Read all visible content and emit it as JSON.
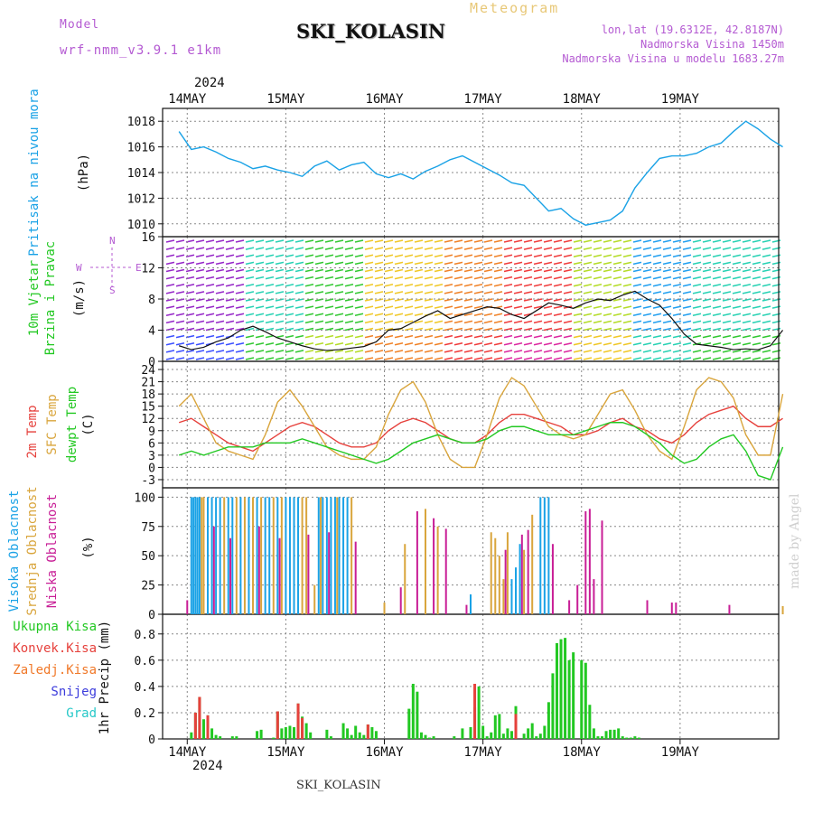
{
  "header": {
    "model_label": "Model",
    "model_name": "wrf-nmm_v3.9.1  e1km",
    "station": "SKI_KOLASIN",
    "product": "Meteogram",
    "lonlat": "lon,lat (19.6312E, 42.8187N)",
    "elevation": "Nadmorska Visina 1450m",
    "model_elevation": "Nadmorska Visina u modelu 1683.27m",
    "year": "2024",
    "footer_station": "SKI_KOLASIN",
    "watermark": "made by Angel"
  },
  "colors": {
    "pressure": "#1aa2e6",
    "temp2m": "#e6413c",
    "sfc": "#d9a53c",
    "dew": "#22c822",
    "cloud_high": "#1aa2e6",
    "cloud_mid": "#d9a53c",
    "cloud_low": "#c81e96",
    "rain_total": "#22c822",
    "rain_conv": "#e6413c",
    "rain_frozen": "#f07828",
    "snow": "#3c3cdc",
    "graupel": "#28c8c8",
    "label_purple": "#b45ad2"
  },
  "chart_data": [
    {
      "type": "line",
      "title": "",
      "ylabel_lines": [
        "Pritisak na nivou mora",
        "(hPa)"
      ],
      "x_ticks": [
        "14MAY",
        "15MAY",
        "16MAY",
        "17MAY",
        "18MAY",
        "19MAY"
      ],
      "ylim": [
        1009,
        1019
      ],
      "y_ticks": [
        1010,
        1012,
        1014,
        1016,
        1018
      ],
      "grid": true,
      "series": [
        {
          "name": "Pritisak na nivou mora",
          "x_hours": [
            0,
            3,
            6,
            9,
            12,
            15,
            18,
            21,
            24,
            27,
            30,
            33,
            36,
            39,
            42,
            45,
            48,
            51,
            54,
            57,
            60,
            63,
            66,
            69,
            72,
            75,
            78,
            81,
            84,
            87,
            90,
            93,
            96,
            99,
            102,
            105,
            108,
            111,
            114,
            117,
            120,
            123,
            126,
            129,
            132,
            135,
            138,
            141,
            144,
            147
          ],
          "values": [
            1017.2,
            1015.8,
            1016.0,
            1015.6,
            1015.1,
            1014.8,
            1014.3,
            1014.5,
            1014.2,
            1014.0,
            1013.7,
            1014.5,
            1014.9,
            1014.2,
            1014.6,
            1014.8,
            1013.9,
            1013.6,
            1013.9,
            1013.5,
            1014.1,
            1014.5,
            1015.0,
            1015.3,
            1014.8,
            1014.3,
            1013.8,
            1013.2,
            1013.0,
            1012.0,
            1011.0,
            1011.2,
            1010.4,
            1009.9,
            1010.1,
            1010.3,
            1011.0,
            1012.8,
            1014.0,
            1015.1,
            1015.3,
            1015.3,
            1015.5,
            1016.0,
            1016.3,
            1017.2,
            1018.0,
            1017.4,
            1016.6,
            1016.0
          ]
        }
      ]
    },
    {
      "type": "line",
      "title": "",
      "ylabel_lines": [
        "10m Vjetar",
        "Brzina i Pravac",
        "(m/s)"
      ],
      "ylim": [
        0,
        16
      ],
      "y_ticks": [
        0,
        4,
        8,
        12,
        16
      ],
      "grid": true,
      "wind_rose": [
        "N",
        "E",
        "S",
        "W"
      ],
      "series": [
        {
          "name": "Brzina",
          "x_hours": [
            0,
            3,
            6,
            9,
            12,
            15,
            18,
            21,
            24,
            27,
            30,
            33,
            36,
            39,
            42,
            45,
            48,
            51,
            54,
            57,
            60,
            63,
            66,
            69,
            72,
            75,
            78,
            81,
            84,
            87,
            90,
            93,
            96,
            99,
            102,
            105,
            108,
            111,
            114,
            117,
            120,
            123,
            126,
            129,
            132,
            135,
            138,
            141,
            144,
            147
          ],
          "values": [
            2.0,
            1.5,
            1.8,
            2.5,
            3.0,
            4.0,
            4.5,
            3.8,
            3.0,
            2.5,
            2.0,
            1.6,
            1.4,
            1.5,
            1.7,
            1.9,
            2.5,
            4.0,
            4.2,
            5.0,
            5.8,
            6.5,
            5.5,
            6.0,
            6.5,
            7.0,
            6.8,
            6.0,
            5.5,
            6.5,
            7.5,
            7.2,
            6.8,
            7.5,
            8.0,
            7.8,
            8.5,
            9.0,
            8.0,
            7.2,
            5.5,
            3.5,
            2.2,
            2.0,
            1.8,
            1.5,
            1.6,
            1.5,
            2.0,
            4.0
          ]
        }
      ]
    },
    {
      "type": "line",
      "title": "",
      "ylabel_lines": [
        "2m Temp",
        "SFC Temp",
        "dewpt Temp",
        "(C)"
      ],
      "ylim": [
        -5,
        26
      ],
      "y_ticks": [
        -3,
        0,
        3,
        6,
        9,
        12,
        15,
        18,
        21,
        24
      ],
      "grid": true,
      "series": [
        {
          "name": "2m Temp",
          "x_hours": [
            0,
            3,
            6,
            9,
            12,
            15,
            18,
            21,
            24,
            27,
            30,
            33,
            36,
            39,
            42,
            45,
            48,
            51,
            54,
            57,
            60,
            63,
            66,
            69,
            72,
            75,
            78,
            81,
            84,
            87,
            90,
            93,
            96,
            99,
            102,
            105,
            108,
            111,
            114,
            117,
            120,
            123,
            126,
            129,
            132,
            135,
            138,
            141,
            144,
            147
          ],
          "values": [
            11,
            12,
            10,
            8,
            6,
            5,
            4,
            6,
            8,
            10,
            11,
            10,
            8,
            6,
            5,
            5,
            6,
            9,
            11,
            12,
            11,
            9,
            7,
            6,
            6,
            8,
            11,
            13,
            13,
            12,
            11,
            10,
            8,
            8,
            9,
            11,
            12,
            10,
            9,
            7,
            6,
            8,
            11,
            13,
            14,
            15,
            12,
            10,
            10,
            12
          ]
        },
        {
          "name": "SFC Temp",
          "x_hours": [
            0,
            3,
            6,
            9,
            12,
            15,
            18,
            21,
            24,
            27,
            30,
            33,
            36,
            39,
            42,
            45,
            48,
            51,
            54,
            57,
            60,
            63,
            66,
            69,
            72,
            75,
            78,
            81,
            84,
            87,
            90,
            93,
            96,
            99,
            102,
            105,
            108,
            111,
            114,
            117,
            120,
            123,
            126,
            129,
            132,
            135,
            138,
            141,
            144,
            147
          ],
          "values": [
            15,
            18,
            12,
            6,
            4,
            3,
            2,
            8,
            16,
            19,
            15,
            10,
            5,
            3,
            2,
            2,
            5,
            13,
            19,
            21,
            16,
            8,
            2,
            0,
            0,
            8,
            17,
            22,
            20,
            15,
            10,
            8,
            7,
            8,
            13,
            18,
            19,
            14,
            8,
            4,
            2,
            10,
            19,
            22,
            21,
            17,
            8,
            3,
            3,
            18
          ]
        },
        {
          "name": "dewpt Temp",
          "x_hours": [
            0,
            3,
            6,
            9,
            12,
            15,
            18,
            21,
            24,
            27,
            30,
            33,
            36,
            39,
            42,
            45,
            48,
            51,
            54,
            57,
            60,
            63,
            66,
            69,
            72,
            75,
            78,
            81,
            84,
            87,
            90,
            93,
            96,
            99,
            102,
            105,
            108,
            111,
            114,
            117,
            120,
            123,
            126,
            129,
            132,
            135,
            138,
            141,
            144,
            147
          ],
          "values": [
            3,
            4,
            3,
            4,
            5,
            5,
            5,
            6,
            6,
            6,
            7,
            6,
            5,
            4,
            3,
            2,
            1,
            2,
            4,
            6,
            7,
            8,
            7,
            6,
            6,
            7,
            9,
            10,
            10,
            9,
            8,
            8,
            8,
            9,
            10,
            11,
            11,
            10,
            8,
            6,
            3,
            1,
            2,
            5,
            7,
            8,
            4,
            -2,
            -3,
            5
          ]
        }
      ]
    },
    {
      "type": "bar",
      "title": "",
      "ylabel_lines": [
        "Visoka Oblacnost",
        "Srednja Oblacnost",
        "Niska Oblacnost",
        "(%)"
      ],
      "ylim": [
        0,
        108
      ],
      "y_ticks": [
        0,
        25,
        50,
        75,
        100
      ],
      "grid": true,
      "series": [
        {
          "name": "Visoka Oblacnost",
          "x_hours": [
            3,
            3.5,
            4,
            4.5,
            5,
            7,
            8,
            9,
            10,
            12,
            13,
            15,
            17,
            19,
            21,
            22,
            24,
            26,
            27,
            28,
            29,
            34,
            35,
            36,
            37,
            38,
            39,
            40,
            41,
            71,
            81,
            82,
            83,
            88,
            89,
            90
          ],
          "values": [
            100,
            100,
            100,
            100,
            100,
            100,
            100,
            100,
            100,
            100,
            100,
            100,
            100,
            100,
            100,
            100,
            100,
            100,
            100,
            100,
            100,
            100,
            100,
            100,
            100,
            100,
            100,
            100,
            100,
            17,
            30,
            40,
            60,
            100,
            100,
            100
          ]
        },
        {
          "name": "Srednja Oblacnost",
          "x_hours": [
            5.5,
            6,
            11,
            14,
            16,
            18,
            20,
            23,
            25,
            30,
            31,
            33,
            34.5,
            38.5,
            42,
            50,
            55,
            60,
            63,
            76,
            77,
            78,
            79,
            80,
            84,
            86,
            147
          ],
          "values": [
            100,
            100,
            100,
            100,
            100,
            100,
            100,
            100,
            100,
            100,
            100,
            25,
            100,
            100,
            100,
            10,
            60,
            90,
            75,
            70,
            65,
            50,
            30,
            70,
            55,
            85,
            7
          ]
        },
        {
          "name": "Niska Oblacnost",
          "x_hours": [
            2,
            8.5,
            12.5,
            19.5,
            24.5,
            31.5,
            36.5,
            43,
            54,
            58,
            62,
            65,
            70,
            79.5,
            83.5,
            85,
            91,
            95,
            97,
            99,
            100,
            101,
            103,
            114,
            120,
            121,
            134
          ],
          "values": [
            12,
            75,
            65,
            75,
            65,
            68,
            70,
            62,
            23,
            88,
            82,
            73,
            8,
            55,
            68,
            72,
            60,
            12,
            25,
            88,
            90,
            30,
            80,
            12,
            10,
            10,
            8
          ]
        }
      ]
    },
    {
      "type": "bar",
      "title": "",
      "ylabel_lines": [
        "1hr Precip (mm)"
      ],
      "legend": [
        "Ukupna Kisa",
        "Konvek.Kisa",
        "Zaledj.Kisa",
        "Snijeg",
        "Grad"
      ],
      "ylim": [
        0,
        0.95
      ],
      "y_ticks": [
        0,
        0.2,
        0.4,
        0.6,
        0.8
      ],
      "grid": true,
      "series": [
        {
          "name": "Ukupna Kisa",
          "x_hours": [
            3,
            4,
            5,
            6,
            7,
            8,
            9,
            10,
            13,
            14,
            19,
            20,
            23,
            24,
            25,
            26,
            27,
            28,
            29,
            30,
            31,
            32,
            36,
            37,
            40,
            41,
            42,
            43,
            44,
            45,
            46,
            47,
            48,
            56,
            57,
            58,
            59,
            60,
            61,
            62,
            67,
            69,
            71,
            72,
            73,
            74,
            75,
            76,
            77,
            78,
            79,
            80,
            81,
            82,
            84,
            85,
            86,
            87,
            88,
            89,
            90,
            91,
            92,
            93,
            94,
            95,
            96,
            98,
            99,
            100,
            101,
            102,
            103,
            104,
            105,
            106,
            107,
            108,
            109,
            110,
            111,
            112
          ],
          "values": [
            0.05,
            0.2,
            0.32,
            0.15,
            0.18,
            0.08,
            0.03,
            0.02,
            0.02,
            0.02,
            0.06,
            0.07,
            0.01,
            0.21,
            0.08,
            0.09,
            0.1,
            0.09,
            0.27,
            0.17,
            0.12,
            0.05,
            0.07,
            0.02,
            0.12,
            0.08,
            0.03,
            0.1,
            0.05,
            0.03,
            0.11,
            0.09,
            0.06,
            0.23,
            0.42,
            0.36,
            0.05,
            0.03,
            0.01,
            0.02,
            0.02,
            0.08,
            0.09,
            0.24,
            0.4,
            0.1,
            0.02,
            0.05,
            0.18,
            0.19,
            0.04,
            0.08,
            0.06,
            0.25,
            0.04,
            0.08,
            0.12,
            0.02,
            0.04,
            0.1,
            0.28,
            0.5,
            0.73,
            0.76,
            0.77,
            0.6,
            0.66,
            0.6,
            0.58,
            0.26,
            0.08,
            0.02,
            0.02,
            0.06,
            0.07,
            0.07,
            0.08,
            0.02,
            0.01,
            0.01,
            0.02,
            0.01
          ]
        },
        {
          "name": "Konvek.Kisa",
          "x_hours": [
            4,
            5,
            7,
            24,
            29,
            30,
            46,
            72,
            82
          ],
          "values": [
            0.2,
            0.32,
            0.18,
            0.21,
            0.27,
            0.16,
            0.11,
            0.42,
            0.19
          ]
        }
      ]
    }
  ]
}
